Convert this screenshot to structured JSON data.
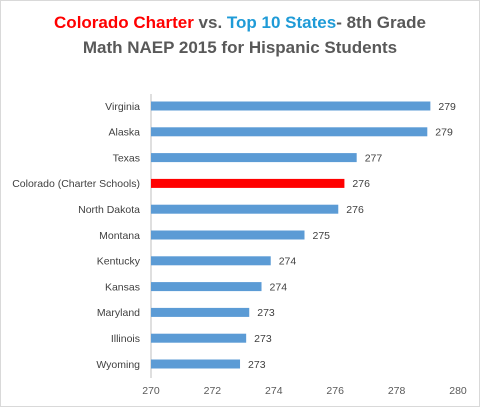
{
  "title": {
    "part1": "Colorado Charter",
    "part2": " vs. ",
    "part3": "Top 10 States",
    "part4": "- 8th Grade",
    "line2": "Math NAEP 2015 for Hispanic Students"
  },
  "colors": {
    "bar": "#5b9bd5",
    "highlight": "#ff0000",
    "title_red": "#ff0000",
    "title_blue": "#1f9bd7",
    "axis": "#bfbfbf"
  },
  "chart_data": {
    "type": "bar",
    "orientation": "horizontal",
    "title": "Colorado Charter vs. Top 10 States- 8th Grade Math NAEP 2015 for Hispanic Students",
    "categories": [
      "Virginia",
      "Alaska",
      "Texas",
      "Colorado (Charter Schools)",
      "North Dakota",
      "Montana",
      "Kentucky",
      "Kansas",
      "Maryland",
      "Illinois",
      "Wyoming"
    ],
    "values": [
      279.1,
      279,
      276.7,
      276.3,
      276.1,
      275,
      273.9,
      273.6,
      273.2,
      273.1,
      272.9
    ],
    "labels": [
      "279",
      "279",
      "277",
      "276",
      "276",
      "275",
      "274",
      "274",
      "273",
      "273",
      "273"
    ],
    "highlight_index": 3,
    "xlim": [
      270,
      280
    ],
    "xticks": [
      "270",
      "272",
      "274",
      "276",
      "278",
      "280"
    ],
    "xlabel": "",
    "ylabel": "",
    "grid": false,
    "legend": "none"
  }
}
